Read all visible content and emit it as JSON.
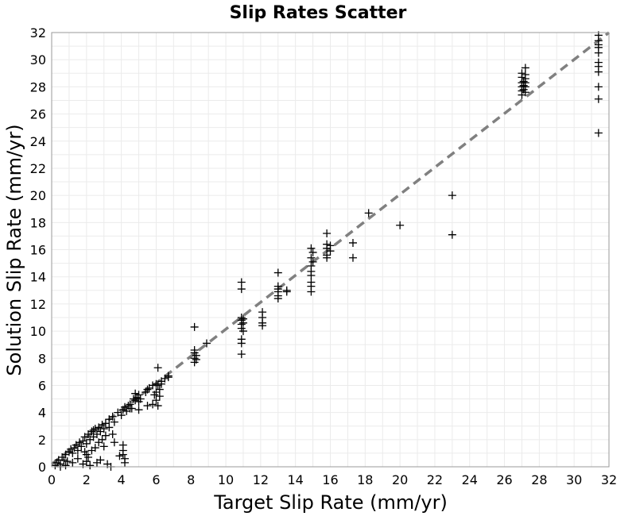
{
  "chart_data": {
    "type": "scatter",
    "title": "Slip Rates Scatter",
    "xlabel": "Target Slip Rate (mm/yr)",
    "ylabel": "Solution Slip Rate (mm/yr)",
    "xlim": [
      0,
      32
    ],
    "ylim": [
      0,
      32
    ],
    "xticks": [
      0,
      2,
      4,
      6,
      8,
      10,
      12,
      14,
      16,
      18,
      20,
      22,
      24,
      26,
      28,
      30,
      32
    ],
    "yticks": [
      0,
      2,
      4,
      6,
      8,
      10,
      12,
      14,
      16,
      18,
      20,
      22,
      24,
      26,
      28,
      30,
      32
    ],
    "grid": true,
    "marker": "plus",
    "marker_color": "#000000",
    "reference_line": {
      "x": [
        0,
        32
      ],
      "y": [
        0.2,
        32
      ],
      "color": "#808080",
      "style": "dashed"
    },
    "points": [
      [
        0.2,
        0.1
      ],
      [
        0.3,
        0.3
      ],
      [
        0.4,
        0.5
      ],
      [
        0.5,
        0.2
      ],
      [
        0.6,
        0.7
      ],
      [
        0.7,
        0.5
      ],
      [
        0.8,
        0.9
      ],
      [
        0.9,
        0.4
      ],
      [
        1.0,
        1.1
      ],
      [
        1.1,
        1.3
      ],
      [
        1.2,
        1.0
      ],
      [
        1.3,
        1.4
      ],
      [
        1.4,
        1.6
      ],
      [
        1.5,
        1.2
      ],
      [
        1.6,
        1.8
      ],
      [
        1.7,
        1.5
      ],
      [
        1.8,
        1.9
      ],
      [
        1.9,
        2.2
      ],
      [
        2.0,
        1.7
      ],
      [
        2.1,
        2.4
      ],
      [
        2.2,
        2.0
      ],
      [
        2.3,
        2.6
      ],
      [
        2.4,
        2.2
      ],
      [
        2.5,
        2.8
      ],
      [
        2.6,
        2.4
      ],
      [
        2.7,
        2.9
      ],
      [
        2.8,
        2.6
      ],
      [
        2.9,
        3.1
      ],
      [
        3.0,
        2.8
      ],
      [
        3.1,
        3.2
      ],
      [
        3.3,
        3.5
      ],
      [
        3.5,
        3.7
      ],
      [
        3.6,
        3.3
      ],
      [
        3.8,
        4.0
      ],
      [
        4.0,
        3.8
      ],
      [
        4.1,
        4.2
      ],
      [
        4.2,
        4.4
      ],
      [
        4.3,
        4.1
      ],
      [
        4.4,
        4.5
      ],
      [
        4.5,
        4.3
      ],
      [
        0.5,
        0.0
      ],
      [
        0.8,
        0.1
      ],
      [
        1.2,
        0.3
      ],
      [
        1.5,
        0.6
      ],
      [
        1.8,
        0.2
      ],
      [
        2.0,
        0.9
      ],
      [
        2.0,
        0.4
      ],
      [
        2.2,
        0.1
      ],
      [
        2.3,
        1.2
      ],
      [
        2.5,
        1.4
      ],
      [
        2.1,
        0.7
      ],
      [
        1.9,
        1.1
      ],
      [
        2.6,
        0.3
      ],
      [
        2.8,
        0.5
      ],
      [
        3.0,
        1.5
      ],
      [
        3.2,
        0.2
      ],
      [
        3.4,
        0.0
      ],
      [
        2.9,
        2.0
      ],
      [
        2.7,
        1.8
      ],
      [
        2.4,
        2.7
      ],
      [
        3.6,
        1.8
      ],
      [
        3.9,
        0.8
      ],
      [
        4.1,
        1.6
      ],
      [
        4.1,
        1.2
      ],
      [
        4.2,
        0.6
      ],
      [
        4.2,
        0.3
      ],
      [
        4.1,
        0.9
      ],
      [
        3.5,
        2.4
      ],
      [
        3.3,
        2.9
      ],
      [
        3.1,
        2.3
      ],
      [
        4.5,
        4.6
      ],
      [
        4.6,
        4.3
      ],
      [
        4.8,
        4.9
      ],
      [
        4.9,
        5.1
      ],
      [
        5.0,
        5.3
      ],
      [
        5.0,
        4.8
      ],
      [
        5.0,
        4.2
      ],
      [
        4.8,
        5.4
      ],
      [
        4.7,
        5.0
      ],
      [
        5.1,
        5.0
      ],
      [
        5.4,
        5.5
      ],
      [
        5.5,
        5.7
      ],
      [
        5.5,
        4.5
      ],
      [
        5.6,
        5.8
      ],
      [
        5.8,
        6.0
      ],
      [
        5.8,
        4.6
      ],
      [
        5.9,
        5.3
      ],
      [
        6.0,
        6.1
      ],
      [
        6.0,
        5.5
      ],
      [
        6.1,
        7.3
      ],
      [
        6.1,
        6.0
      ],
      [
        6.2,
        5.7
      ],
      [
        6.2,
        5.2
      ],
      [
        6.3,
        6.3
      ],
      [
        6.3,
        6.1
      ],
      [
        6.5,
        6.5
      ],
      [
        6.7,
        6.7
      ],
      [
        6.7,
        6.6
      ],
      [
        6.0,
        4.9
      ],
      [
        6.1,
        4.5
      ],
      [
        8.2,
        10.3
      ],
      [
        8.2,
        8.6
      ],
      [
        8.2,
        8.4
      ],
      [
        8.2,
        8.0
      ],
      [
        8.2,
        7.7
      ],
      [
        8.3,
        8.2
      ],
      [
        8.3,
        7.9
      ],
      [
        8.9,
        9.1
      ],
      [
        10.9,
        13.6
      ],
      [
        10.9,
        13.1
      ],
      [
        10.9,
        11.0
      ],
      [
        10.9,
        10.8
      ],
      [
        10.9,
        10.5
      ],
      [
        10.9,
        10.2
      ],
      [
        10.9,
        9.4
      ],
      [
        10.9,
        9.1
      ],
      [
        10.9,
        8.3
      ],
      [
        11.0,
        10.9
      ],
      [
        11.0,
        10.6
      ],
      [
        11.0,
        10.0
      ],
      [
        12.1,
        11.4
      ],
      [
        12.1,
        11.0
      ],
      [
        12.1,
        10.6
      ],
      [
        12.1,
        10.4
      ],
      [
        13.0,
        14.3
      ],
      [
        13.0,
        13.3
      ],
      [
        13.0,
        13.1
      ],
      [
        13.0,
        12.9
      ],
      [
        13.0,
        12.6
      ],
      [
        13.0,
        12.4
      ],
      [
        13.5,
        13.0
      ],
      [
        13.5,
        12.9
      ],
      [
        14.9,
        16.1
      ],
      [
        14.9,
        15.4
      ],
      [
        14.9,
        14.8
      ],
      [
        14.9,
        14.4
      ],
      [
        14.9,
        14.1
      ],
      [
        14.9,
        13.6
      ],
      [
        14.9,
        13.3
      ],
      [
        14.9,
        12.9
      ],
      [
        15.0,
        15.8
      ],
      [
        15.0,
        15.1
      ],
      [
        15.8,
        17.2
      ],
      [
        15.8,
        16.4
      ],
      [
        15.8,
        16.1
      ],
      [
        15.8,
        15.6
      ],
      [
        15.8,
        15.4
      ],
      [
        16.0,
        16.3
      ],
      [
        16.0,
        15.9
      ],
      [
        17.3,
        16.5
      ],
      [
        17.3,
        15.4
      ],
      [
        18.2,
        18.7
      ],
      [
        20.0,
        17.8
      ],
      [
        23.0,
        20.0
      ],
      [
        23.0,
        17.1
      ],
      [
        27.0,
        29.0
      ],
      [
        27.0,
        28.7
      ],
      [
        27.0,
        28.3
      ],
      [
        27.0,
        28.0
      ],
      [
        27.0,
        27.7
      ],
      [
        27.0,
        27.4
      ],
      [
        27.1,
        28.4
      ],
      [
        27.1,
        28.1
      ],
      [
        27.1,
        27.8
      ],
      [
        27.2,
        29.4
      ],
      [
        27.2,
        28.9
      ],
      [
        27.2,
        28.6
      ],
      [
        27.2,
        28.3
      ],
      [
        27.2,
        28.0
      ],
      [
        27.2,
        27.6
      ],
      [
        31.4,
        31.8
      ],
      [
        31.4,
        31.4
      ],
      [
        31.4,
        31.1
      ],
      [
        31.4,
        30.9
      ],
      [
        31.4,
        30.5
      ],
      [
        31.4,
        29.8
      ],
      [
        31.4,
        29.5
      ],
      [
        31.4,
        29.1
      ],
      [
        31.4,
        28.0
      ],
      [
        31.4,
        27.1
      ],
      [
        31.4,
        24.6
      ]
    ]
  }
}
